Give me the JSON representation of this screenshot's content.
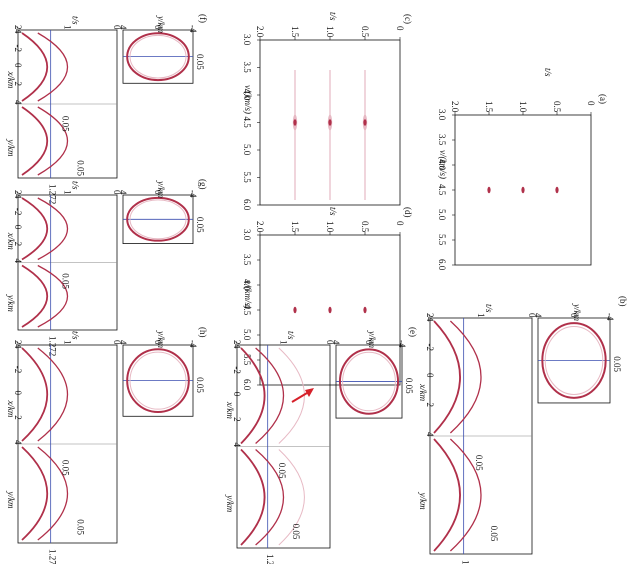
{
  "figure": {
    "orientation": "rotated 90 degrees clockwise",
    "colors": {
      "event": "#b0304a",
      "faint": "#e7b9c4",
      "guide": "#3b4fb0",
      "arrow": "#d6202a"
    },
    "velocity_panels": [
      {
        "id": "a",
        "label": "(a)",
        "xlabel": "t/s",
        "ylabel": "v/(km/s)",
        "t_ticks": [
          "2.0",
          "1.5",
          "1.0",
          "0.5",
          "0"
        ],
        "v_ticks": [
          "3.0",
          "3.5",
          "4.0",
          "4.5",
          "5.0",
          "5.5",
          "6.0"
        ],
        "chart_data": {
          "type": "scatter",
          "points": [
            {
              "t": 1.5,
              "v": 4.5
            },
            {
              "t": 1.0,
              "v": 4.5
            },
            {
              "t": 0.5,
              "v": 4.5
            }
          ]
        }
      },
      {
        "id": "c",
        "label": "(c)",
        "xlabel": "t/s",
        "ylabel": "v/(km/s)",
        "t_ticks": [
          "2.0",
          "1.5",
          "1.0",
          "0.5",
          "0"
        ],
        "v_ticks": [
          "3.0",
          "3.5",
          "4.0",
          "4.5",
          "5.0",
          "5.5",
          "6.0"
        ],
        "chart_data": {
          "type": "scatter",
          "points": [
            {
              "t": 1.5,
              "v": 4.5
            },
            {
              "t": 1.0,
              "v": 4.5
            },
            {
              "t": 0.5,
              "v": 4.5
            }
          ]
        }
      },
      {
        "id": "d",
        "label": "(d)",
        "xlabel": "t/s",
        "ylabel": "v/(km/s)",
        "t_ticks": [
          "2.0",
          "1.5",
          "1.0",
          "0.5",
          "0"
        ],
        "v_ticks": [
          "3.0",
          "3.5",
          "4.0",
          "4.5",
          "5.0",
          "5.5",
          "6.0"
        ],
        "chart_data": {
          "type": "scatter",
          "points": [
            {
              "t": 1.5,
              "v": 4.5
            },
            {
              "t": 1.0,
              "v": 4.5
            },
            {
              "t": 0.5,
              "v": 4.5
            }
          ]
        }
      }
    ],
    "gather_panels": [
      {
        "id": "b",
        "label": "(b)"
      },
      {
        "id": "e",
        "label": "(e)"
      },
      {
        "id": "f",
        "label": "(f)"
      },
      {
        "id": "g",
        "label": "(g)"
      },
      {
        "id": "h",
        "label": "(h)"
      }
    ],
    "gather_text": {
      "t_axis": "t/s",
      "t_ticks": [
        "2",
        "1",
        "0"
      ],
      "y_axis": "y/km",
      "y_ticks": [
        "4",
        "0",
        "-4"
      ],
      "x_axis": "x/km",
      "x_ticks": [
        "-4",
        "-2",
        "0",
        "2",
        "4"
      ],
      "scale_005": "0.05",
      "scale_1272": "1.272",
      "e_numbers": [
        "1.2",
        "7",
        "2"
      ]
    }
  }
}
